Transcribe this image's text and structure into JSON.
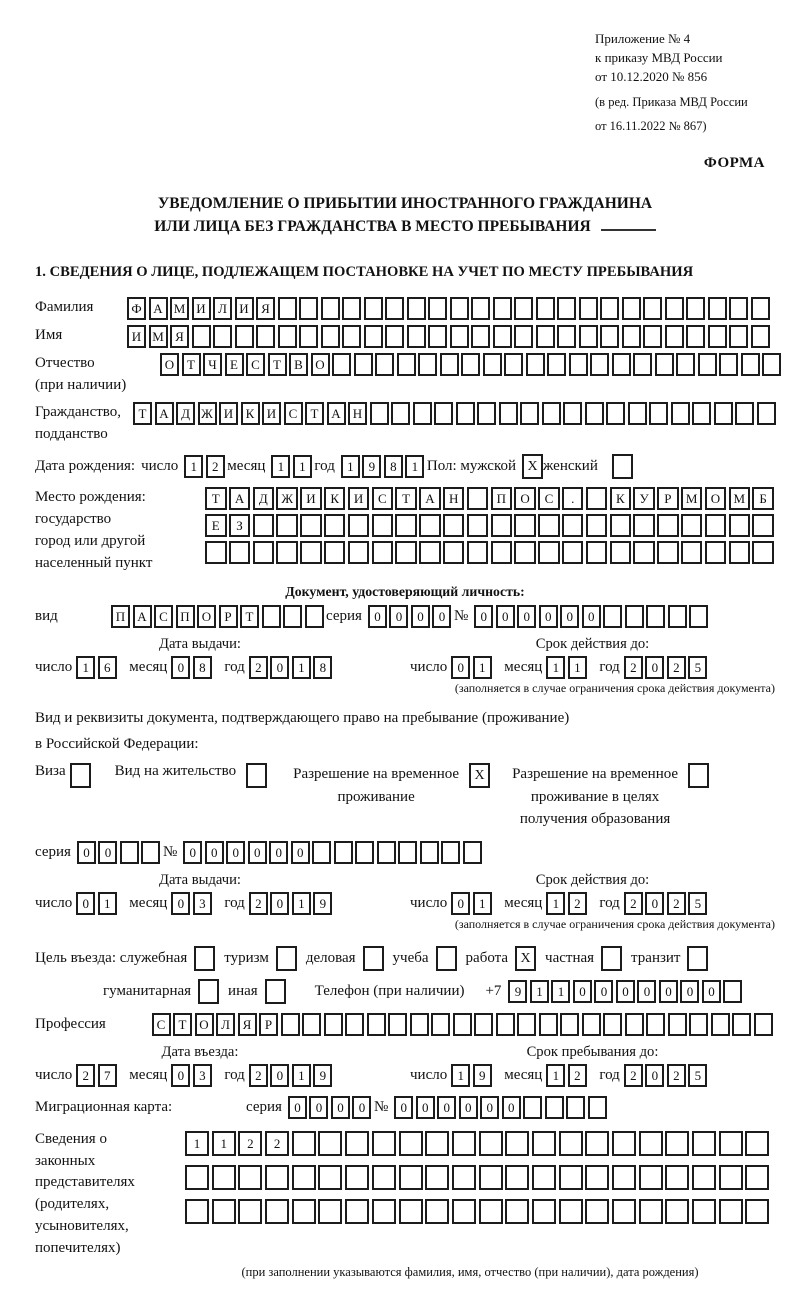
{
  "annotation": {
    "line1": "Приложение № 4",
    "line2": "к приказу МВД России",
    "line3": "от 10.12.2020 № 856",
    "line4": "(в ред. Приказа МВД России",
    "line5": "от 16.11.2022 № 867)",
    "form_label": "ФОРМА"
  },
  "title": {
    "line1": "УВЕДОМЛЕНИЕ О ПРИБЫТИИ ИНОСТРАННОГО ГРАЖДАНИНА",
    "line2": "ИЛИ ЛИЦА БЕЗ ГРАЖДАНСТВА В МЕСТО ПРЕБЫВАНИЯ"
  },
  "section1_heading": "1. СВЕДЕНИЯ О ЛИЦЕ, ПОДЛЕЖАЩЕМ ПОСТАНОВКЕ НА УЧЕТ ПО МЕСТУ ПРЕБЫВАНИЯ",
  "person": {
    "surname": {
      "label": "Фамилия",
      "boxes": {
        "value": "ФАМИЛИЯ",
        "count": 30
      }
    },
    "given_name": {
      "label": "Имя",
      "boxes": {
        "value": "ИМЯ",
        "count": 30
      }
    },
    "patronymic": {
      "label": "Отчество",
      "label_note": "(при наличии)",
      "boxes": {
        "value": "ОТЧЕСТВО",
        "count": 29
      }
    },
    "citizenship": {
      "label": "Гражданство,",
      "label2": "подданство",
      "boxes": {
        "value": "ТАДЖИКИСТАН",
        "count": 30
      }
    },
    "birth_date": {
      "label": "Дата рождения:",
      "day_label": "число",
      "day": {
        "value": "12",
        "count": 2
      },
      "month_label": "месяц",
      "month": {
        "value": "11",
        "count": 2
      },
      "year_label": "год",
      "year": {
        "value": "1981",
        "count": 4
      }
    },
    "sex": {
      "male_label": "Пол: мужской",
      "male": "X",
      "female_label": "женский",
      "female": ""
    },
    "birth_place": {
      "label1": "Место рождения:",
      "label2": "государство",
      "label3": "город или другой",
      "label4": "населенный пункт",
      "row1": {
        "value": "ТАДЖИКИСТАН ПОС. КУРМОМБ",
        "count": 24
      },
      "row2": {
        "value": "ЕЗ",
        "count": 24
      },
      "row3": {
        "value": "",
        "count": 24
      }
    }
  },
  "identity_doc": {
    "heading": "Документ, удостоверяющий личность:",
    "type_label": "вид",
    "type": {
      "value": "ПАСПОРТ",
      "count": 10
    },
    "series_label": "серия",
    "series": {
      "value": "0000",
      "count": 4
    },
    "number_label": "№",
    "number": {
      "value": "000000",
      "count": 11
    },
    "issue": {
      "heading": "Дата выдачи:",
      "day_label": "число",
      "day": {
        "value": "16",
        "count": 2
      },
      "month_label": "месяц",
      "month": {
        "value": "08",
        "count": 2
      },
      "year_label": "год",
      "year": {
        "value": "2018",
        "count": 4
      }
    },
    "expiry": {
      "heading": "Срок действия до:",
      "day_label": "число",
      "day": {
        "value": "01",
        "count": 2
      },
      "month_label": "месяц",
      "month": {
        "value": "11",
        "count": 2
      },
      "year_label": "год",
      "year": {
        "value": "2025",
        "count": 4
      }
    },
    "expiry_note": "(заполняется в случае ограничения срока действия документа)"
  },
  "residence_doc": {
    "intro1": "Вид и реквизиты документа, подтверждающего право на пребывание (проживание)",
    "intro2": "в Российской Федерации:",
    "visa_label": "Виза",
    "visa": "",
    "residence_permit_label": "Вид на жительство",
    "residence_permit": "",
    "temp_permit_label1": "Разрешение на временное",
    "temp_permit_label2": "проживание",
    "temp_permit": "X",
    "edu_permit_label1": "Разрешение на временное",
    "edu_permit_label2": "проживание в целях",
    "edu_permit_label3": "получения образования",
    "edu_permit": "",
    "series_label": "серия",
    "series": {
      "value": "00",
      "count": 4
    },
    "number_label": "№",
    "number": {
      "value": "000000",
      "count": 14
    },
    "issue": {
      "heading": "Дата выдачи:",
      "day_label": "число",
      "day": {
        "value": "01",
        "count": 2
      },
      "month_label": "месяц",
      "month": {
        "value": "03",
        "count": 2
      },
      "year_label": "год",
      "year": {
        "value": "2019",
        "count": 4
      }
    },
    "expiry": {
      "heading": "Срок действия до:",
      "day_label": "число",
      "day": {
        "value": "01",
        "count": 2
      },
      "month_label": "месяц",
      "month": {
        "value": "12",
        "count": 2
      },
      "year_label": "год",
      "year": {
        "value": "2025",
        "count": 4
      }
    },
    "expiry_note": "(заполняется в случае ограничения срока действия документа)"
  },
  "visit": {
    "purpose_label": "Цель въезда: служебная",
    "options_row1": [
      {
        "label": "служебная",
        "checked": ""
      },
      {
        "label": "туризм",
        "checked": ""
      },
      {
        "label": "деловая",
        "checked": ""
      },
      {
        "label": "учеба",
        "checked": ""
      },
      {
        "label": "работа",
        "checked": "X"
      },
      {
        "label": "частная",
        "checked": ""
      },
      {
        "label": "транзит",
        "checked": ""
      }
    ],
    "options_row2": [
      {
        "label": "гуманитарная",
        "checked": ""
      },
      {
        "label": "иная",
        "checked": ""
      }
    ],
    "phone_label": "Телефон (при наличии)",
    "phone_prefix": "+7",
    "phone": {
      "value": "9110000000",
      "count": 11
    },
    "profession_label": "Профессия",
    "profession": {
      "value": "СТОЛЯР",
      "count": 29
    },
    "entry": {
      "heading": "Дата въезда:",
      "day_label": "число",
      "day": {
        "value": "27",
        "count": 2
      },
      "month_label": "месяц",
      "month": {
        "value": "03",
        "count": 2
      },
      "year_label": "год",
      "year": {
        "value": "2019",
        "count": 4
      }
    },
    "stay_until": {
      "heading": "Срок пребывания до:",
      "day_label": "число",
      "day": {
        "value": "19",
        "count": 2
      },
      "month_label": "месяц",
      "month": {
        "value": "12",
        "count": 2
      },
      "year_label": "год",
      "year": {
        "value": "2025",
        "count": 4
      }
    }
  },
  "migration_card": {
    "label": "Миграционная карта:",
    "series_label": "серия",
    "series": {
      "value": "0000",
      "count": 4
    },
    "number_label": "№",
    "number": {
      "value": "000000",
      "count": 10
    }
  },
  "representatives": {
    "label1": "Сведения о",
    "label2": "законных",
    "label3": "представителях",
    "label4": "(родителях,",
    "label5": "усыновителях,",
    "label6": "попечителях)",
    "row1": {
      "value": "1122",
      "count": 22
    },
    "row2": {
      "value": "",
      "count": 22
    },
    "row3": {
      "value": "",
      "count": 22
    },
    "note": "(при заполнении указываются фамилия, имя, отчество (при наличии), дата рождения)"
  }
}
